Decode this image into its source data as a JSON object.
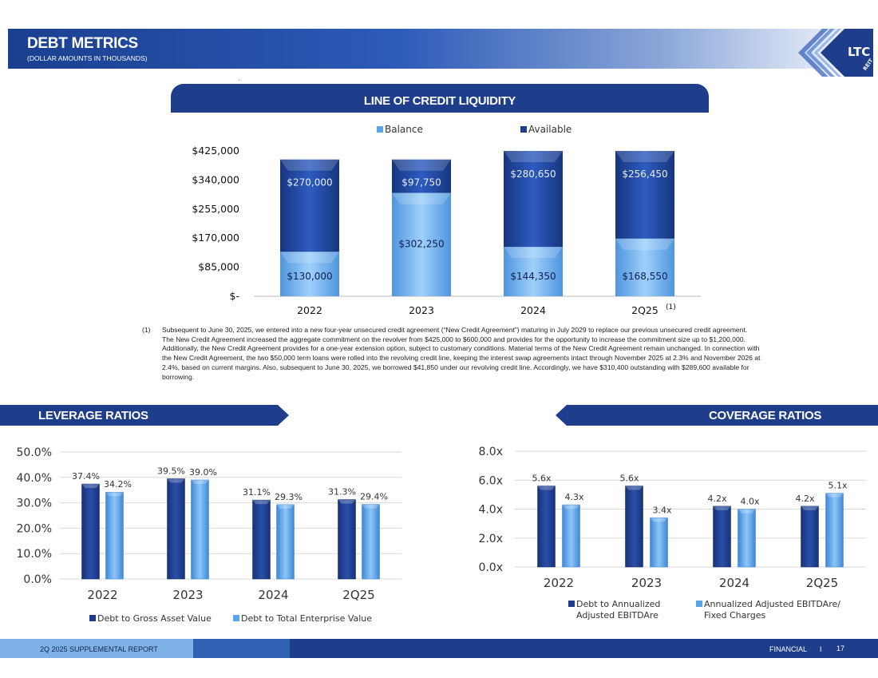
{
  "header": {
    "title": "DEBT METRICS",
    "subtitle": "(DOLLAR AMOUNTS IN THOUSANDS)",
    "logo_text": "LTC",
    "logo_subtext": "REIT"
  },
  "loc_section": {
    "title": "LINE OF CREDIT LIQUIDITY"
  },
  "footnote": {
    "number": "(1)",
    "text": "Subsequent to June 30, 2025, we entered into a new four-year unsecured credit agreement (“New Credit Agreement”) maturing in July 2029 to replace our previous unsecured credit agreement. The New Credit Agreement increased the aggregate commitment on the revolver from $425,000 to $600,000 and provides for the opportunity to increase the commitment size up to $1,200,000. Additionally, the New Credit Agreement provides for a one-year extension option, subject to customary conditions. Material terms of the New Credit Agreement remain unchanged. In connection with the New Credit Agreement, the two $50,000 term loans were rolled into the revolving credit line, keeping the interest swap agreements intact through November 2025 at 2.3% and November 2026 at 2.4%, based on current margins. Also, subsequent to June 30, 2025, we borrowed $41,850 under our revolving credit line. Accordingly, we have $310,400 outstanding with $289,600 available for borrowing."
  },
  "leverage_section": {
    "title": "LEVERAGE RATIOS"
  },
  "coverage_section": {
    "title": "COVERAGE RATIOS"
  },
  "footer": {
    "report": "2Q 2025 SUPPLEMENTAL REPORT",
    "section": "FINANCIAL",
    "separator": "I",
    "page": "17"
  },
  "colors": {
    "navy": "#1e3d8a",
    "light_blue": "#5aa4e8",
    "dark_bar": "#1f3a8c"
  },
  "chart_data": [
    {
      "id": "loc",
      "type": "bar",
      "stacked": true,
      "title": "LINE OF CREDIT LIQUIDITY",
      "categories": [
        "2022",
        "2023",
        "2024",
        "2Q25"
      ],
      "category_note": "(1)",
      "series": [
        {
          "name": "Balance",
          "values": [
            130000,
            302250,
            144350,
            168550
          ],
          "labels": [
            "$130,000",
            "$302,250",
            "$144,350",
            "$168,550"
          ]
        },
        {
          "name": "Available",
          "values": [
            270000,
            97750,
            280650,
            256450
          ],
          "labels": [
            "$270,000",
            "$97,750",
            "$280,650",
            "$256,450"
          ]
        }
      ],
      "ylim": [
        0,
        425000
      ],
      "yticks": [
        0,
        85000,
        170000,
        255000,
        340000,
        425000
      ],
      "ytick_labels": [
        "$-",
        "$85,000",
        "$170,000",
        "$255,000",
        "$340,000",
        "$425,000"
      ],
      "legend": "top"
    },
    {
      "id": "leverage",
      "type": "bar",
      "title": "LEVERAGE RATIOS",
      "categories": [
        "2022",
        "2023",
        "2024",
        "2Q25"
      ],
      "series": [
        {
          "name": "Debt to Gross Asset Value",
          "values": [
            37.4,
            39.5,
            31.1,
            31.3
          ],
          "labels": [
            "37.4%",
            "39.5%",
            "31.1%",
            "31.3%"
          ]
        },
        {
          "name": "Debt to Total Enterprise Value",
          "values": [
            34.2,
            39.0,
            29.3,
            29.4
          ],
          "labels": [
            "34.2%",
            "39.0%",
            "29.3%",
            "29.4%"
          ]
        }
      ],
      "ylim": [
        0,
        50
      ],
      "yticks": [
        0,
        10,
        20,
        30,
        40,
        50
      ],
      "ytick_labels": [
        "0.0%",
        "10.0%",
        "20.0%",
        "30.0%",
        "40.0%",
        "50.0%"
      ],
      "legend": "bottom"
    },
    {
      "id": "coverage",
      "type": "bar",
      "title": "COVERAGE RATIOS",
      "categories": [
        "2022",
        "2023",
        "2024",
        "2Q25"
      ],
      "series": [
        {
          "name": "Debt to Annualized Adjusted EBITDAre",
          "legend_lines": [
            "Debt to Annualized",
            "Adjusted EBITDAre"
          ],
          "values": [
            5.6,
            5.6,
            4.2,
            4.2
          ],
          "labels": [
            "5.6x",
            "5.6x",
            "4.2x",
            "4.2x"
          ]
        },
        {
          "name": "Annualized Adjusted EBITDAre/ Fixed Charges",
          "legend_lines": [
            "Annualized Adjusted EBITDAre/",
            "Fixed Charges"
          ],
          "values": [
            4.3,
            3.4,
            4.0,
            5.1
          ],
          "labels": [
            "4.3x",
            "3.4x",
            "4.0x",
            "5.1x"
          ]
        }
      ],
      "ylim": [
        0,
        8
      ],
      "yticks": [
        0,
        2,
        4,
        6,
        8
      ],
      "ytick_labels": [
        "0.0x",
        "2.0x",
        "4.0x",
        "6.0x",
        "8.0x"
      ],
      "legend": "bottom"
    }
  ]
}
